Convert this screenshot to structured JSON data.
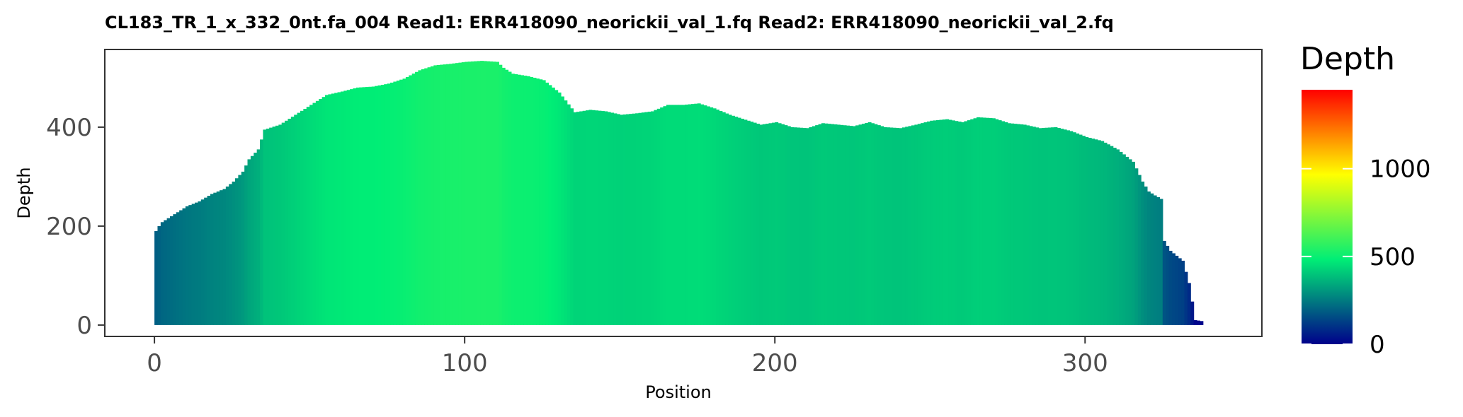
{
  "chart_data": {
    "type": "bar",
    "title": "CL183_TR_1_x_332_0nt.fa_004   Read1: ERR418090_neorickii_val_1.fq   Read2: ERR418090_neorickii_val_2.fq",
    "xlabel": "Position",
    "ylabel": "Depth",
    "xlim": [
      -16,
      357
    ],
    "ylim": [
      -23,
      557
    ],
    "x_ticks": [
      0,
      100,
      200,
      300
    ],
    "y_ticks": [
      0,
      200,
      400
    ],
    "grid": false,
    "color_scale": {
      "title": "Depth",
      "min": 0,
      "max": 1450,
      "ticks": [
        0,
        500,
        1000
      ],
      "colors": [
        "#00008b",
        "#00ee76",
        "#ffff00",
        "#ff0000"
      ]
    },
    "profile_points": [
      [
        0,
        190
      ],
      [
        1,
        200
      ],
      [
        2,
        208
      ],
      [
        3,
        212
      ],
      [
        5,
        220
      ],
      [
        8,
        232
      ],
      [
        10,
        240
      ],
      [
        14,
        250
      ],
      [
        18,
        265
      ],
      [
        22,
        275
      ],
      [
        25,
        290
      ],
      [
        28,
        310
      ],
      [
        30,
        335
      ],
      [
        33,
        355
      ],
      [
        35,
        395
      ],
      [
        40,
        405
      ],
      [
        45,
        425
      ],
      [
        50,
        445
      ],
      [
        55,
        465
      ],
      [
        60,
        472
      ],
      [
        65,
        480
      ],
      [
        70,
        482
      ],
      [
        75,
        488
      ],
      [
        80,
        498
      ],
      [
        85,
        515
      ],
      [
        90,
        525
      ],
      [
        95,
        528
      ],
      [
        100,
        532
      ],
      [
        105,
        534
      ],
      [
        110,
        532
      ],
      [
        112,
        520
      ],
      [
        115,
        508
      ],
      [
        120,
        503
      ],
      [
        125,
        495
      ],
      [
        130,
        470
      ],
      [
        135,
        430
      ],
      [
        140,
        435
      ],
      [
        145,
        432
      ],
      [
        150,
        425
      ],
      [
        155,
        428
      ],
      [
        160,
        432
      ],
      [
        165,
        445
      ],
      [
        170,
        445
      ],
      [
        175,
        448
      ],
      [
        180,
        438
      ],
      [
        185,
        425
      ],
      [
        190,
        415
      ],
      [
        195,
        405
      ],
      [
        200,
        410
      ],
      [
        205,
        400
      ],
      [
        210,
        398
      ],
      [
        215,
        408
      ],
      [
        220,
        405
      ],
      [
        225,
        402
      ],
      [
        230,
        410
      ],
      [
        235,
        400
      ],
      [
        240,
        398
      ],
      [
        245,
        405
      ],
      [
        250,
        413
      ],
      [
        255,
        416
      ],
      [
        260,
        410
      ],
      [
        265,
        420
      ],
      [
        270,
        418
      ],
      [
        275,
        408
      ],
      [
        280,
        405
      ],
      [
        285,
        398
      ],
      [
        290,
        400
      ],
      [
        295,
        392
      ],
      [
        300,
        380
      ],
      [
        305,
        372
      ],
      [
        310,
        355
      ],
      [
        315,
        330
      ],
      [
        318,
        290
      ],
      [
        320,
        270
      ],
      [
        322,
        262
      ],
      [
        324,
        255
      ],
      [
        325,
        170
      ],
      [
        327,
        150
      ],
      [
        329,
        140
      ],
      [
        331,
        130
      ],
      [
        333,
        85
      ],
      [
        335,
        10
      ],
      [
        337,
        8
      ]
    ]
  }
}
